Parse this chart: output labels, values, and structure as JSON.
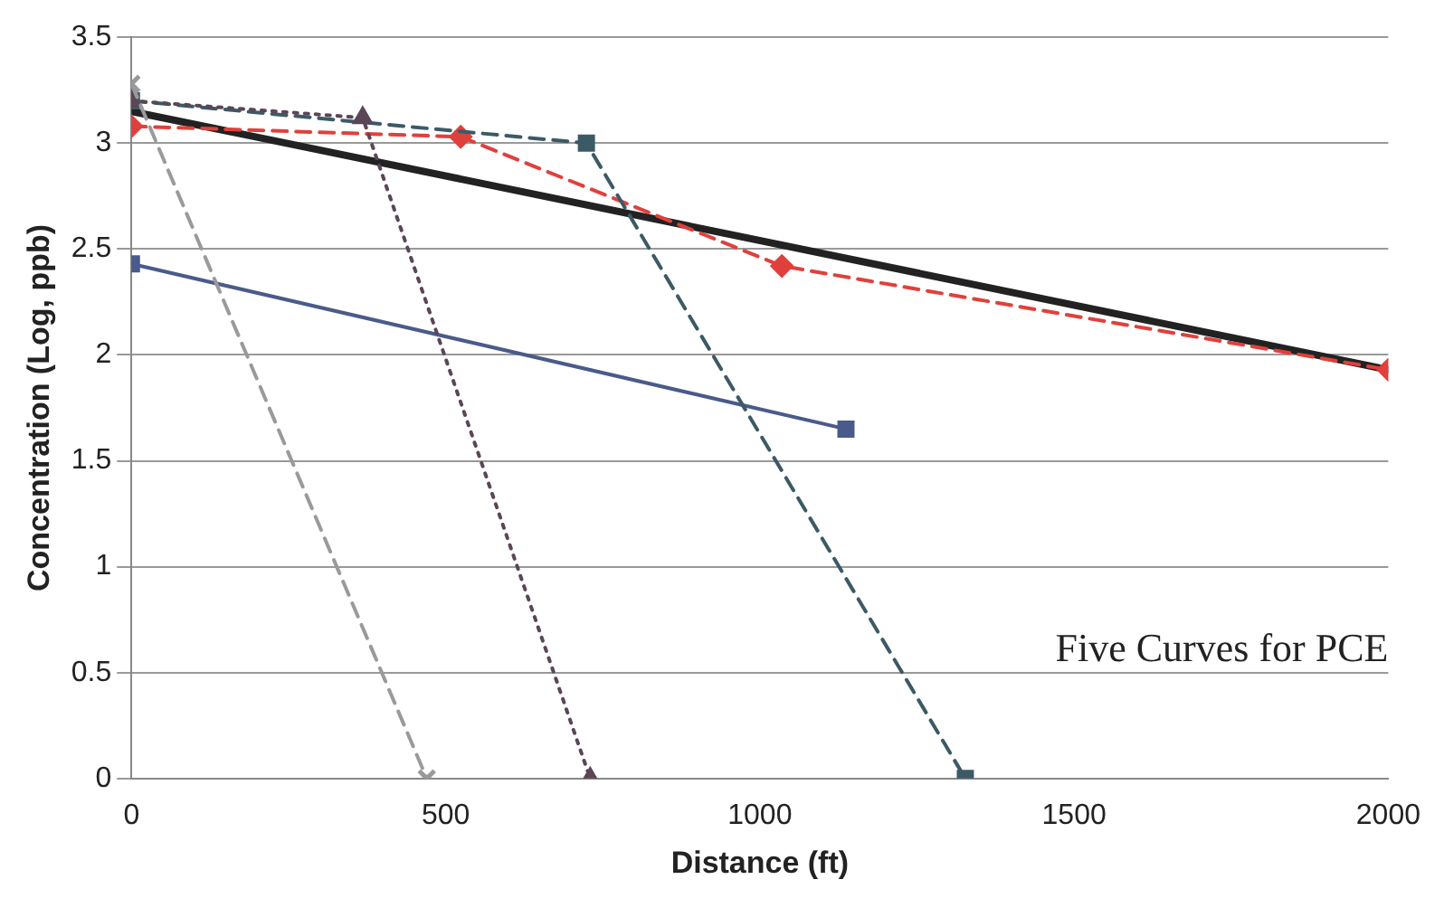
{
  "chart_data": {
    "type": "line",
    "xlabel": "Distance (ft)",
    "ylabel": "Concentration (Log, ppb)",
    "annotations": [
      "Five Curves for PCE"
    ],
    "xlim": [
      0,
      2000
    ],
    "xticks": [
      0,
      500,
      1000,
      1500,
      2000
    ],
    "ylim": [
      0,
      3.5
    ],
    "yticks": [
      0,
      0.5,
      1,
      1.5,
      2,
      2.5,
      3,
      3.5
    ],
    "grid": "y",
    "legend": false,
    "series": [
      {
        "color": "#9a9a9a",
        "marker": "cross",
        "line_style": "dashed",
        "x": [
          0,
          470
        ],
        "values": [
          3.28,
          0
        ]
      },
      {
        "color": "#5a4656",
        "marker": "triangle",
        "line_style": "dotted",
        "x": [
          0,
          368,
          730
        ],
        "values": [
          3.2,
          3.12,
          0
        ]
      },
      {
        "color": "#3c5a66",
        "marker": "square",
        "line_style": "dashed",
        "x": [
          0,
          724,
          1327
        ],
        "values": [
          3.2,
          3.0,
          0
        ]
      },
      {
        "color": "#e0403c",
        "marker": "diamond",
        "line_style": "dashed",
        "x": [
          0,
          524,
          1035,
          2000
        ],
        "values": [
          3.08,
          3.03,
          2.42,
          1.93
        ]
      },
      {
        "color": "#4a5a8a",
        "marker": "square",
        "line_style": "solid",
        "x": [
          0,
          1137
        ],
        "values": [
          2.43,
          1.65
        ]
      },
      {
        "color": "#222222",
        "marker": "none",
        "line_style": "solid",
        "x": [
          0,
          2000
        ],
        "values": [
          3.15,
          1.93
        ]
      }
    ]
  }
}
